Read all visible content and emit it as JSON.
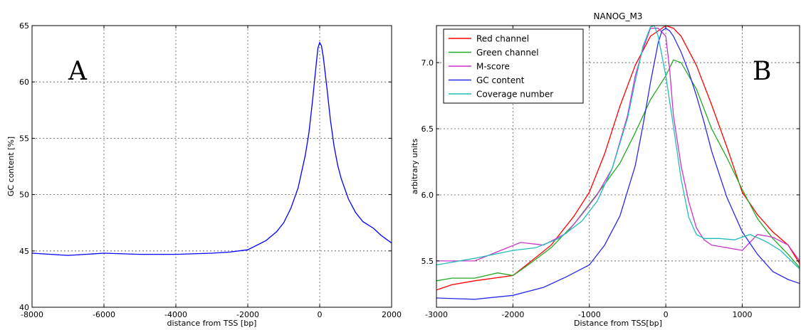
{
  "chart_data": [
    {
      "type": "line",
      "panel_letter": "A",
      "title": "",
      "xlabel": "distance from TSS [bp]",
      "ylabel": "GC content [%]",
      "xlim": [
        -8000,
        2000
      ],
      "ylim": [
        40,
        65
      ],
      "xticks": [
        -8000,
        -6000,
        -4000,
        -2000,
        0,
        2000
      ],
      "yticks": [
        40,
        45,
        50,
        55,
        60,
        65
      ],
      "grid": true,
      "series": [
        {
          "color": "#0000ff",
          "x": [
            -8000,
            -7000,
            -6000,
            -5000,
            -4000,
            -3000,
            -2500,
            -2000,
            -1500,
            -1200,
            -1000,
            -800,
            -600,
            -400,
            -300,
            -200,
            -100,
            -50,
            0,
            50,
            100,
            200,
            300,
            400,
            500,
            600,
            800,
            1000,
            1200,
            1500,
            1700,
            2000
          ],
          "y": [
            44.8,
            44.6,
            44.8,
            44.7,
            44.7,
            44.8,
            44.9,
            45.1,
            45.9,
            46.7,
            47.5,
            48.8,
            50.6,
            53.5,
            55.5,
            58.3,
            61.5,
            63.0,
            63.5,
            63.2,
            62.2,
            59.5,
            56.6,
            54.3,
            52.6,
            51.4,
            49.6,
            48.4,
            47.6,
            47.0,
            46.4,
            45.7
          ]
        }
      ]
    },
    {
      "type": "line",
      "panel_letter": "B",
      "title": "NANOG_M3",
      "xlabel": "Distance from TSS[bp]",
      "ylabel": "arbitrary units",
      "xlim": [
        -3000,
        1750
      ],
      "ylim": [
        5.15,
        7.28
      ],
      "xticks": [
        -3000,
        -2000,
        -1000,
        0,
        1000
      ],
      "yticks": [
        5.5,
        6.0,
        6.5,
        7.0
      ],
      "grid": true,
      "legend_position": "top-left",
      "series": [
        {
          "name": "Red channel",
          "color": "#ff0000",
          "x": [
            -3000,
            -2800,
            -2500,
            -2000,
            -1800,
            -1500,
            -1200,
            -1000,
            -800,
            -600,
            -400,
            -200,
            0,
            100,
            200,
            400,
            600,
            800,
            1000,
            1200,
            1400,
            1600,
            1750
          ],
          "y": [
            5.28,
            5.32,
            5.35,
            5.39,
            5.48,
            5.62,
            5.84,
            6.02,
            6.31,
            6.67,
            6.98,
            7.2,
            7.28,
            7.26,
            7.2,
            6.98,
            6.68,
            6.36,
            6.02,
            5.85,
            5.72,
            5.62,
            5.48
          ]
        },
        {
          "name": "Green channel",
          "color": "#22aa22",
          "x": [
            -3000,
            -2800,
            -2500,
            -2200,
            -2000,
            -1800,
            -1500,
            -1200,
            -1000,
            -800,
            -600,
            -400,
            -200,
            0,
            100,
            200,
            400,
            600,
            800,
            1000,
            1200,
            1400,
            1600,
            1750
          ],
          "y": [
            5.35,
            5.37,
            5.37,
            5.41,
            5.39,
            5.47,
            5.6,
            5.78,
            5.93,
            6.08,
            6.24,
            6.47,
            6.72,
            6.9,
            7.02,
            7.0,
            6.8,
            6.5,
            6.28,
            6.04,
            5.82,
            5.67,
            5.55,
            5.45
          ]
        },
        {
          "name": "M-score",
          "color": "#cc33cc",
          "x": [
            -3000,
            -2500,
            -2200,
            -1900,
            -1600,
            -1300,
            -1100,
            -900,
            -700,
            -500,
            -400,
            -300,
            -200,
            -100,
            0,
            50,
            100,
            200,
            300,
            400,
            500,
            600,
            800,
            1000,
            1200,
            1400,
            1600,
            1750
          ],
          "y": [
            5.5,
            5.5,
            5.57,
            5.64,
            5.62,
            5.71,
            5.85,
            6.0,
            6.2,
            6.6,
            6.9,
            7.1,
            7.26,
            7.26,
            7.2,
            6.95,
            6.6,
            6.22,
            5.95,
            5.75,
            5.66,
            5.62,
            5.6,
            5.58,
            5.7,
            5.68,
            5.62,
            5.5
          ]
        },
        {
          "name": "GC content",
          "color": "#2a2aee",
          "x": [
            -3000,
            -2500,
            -2000,
            -1600,
            -1300,
            -1000,
            -800,
            -600,
            -400,
            -300,
            -200,
            -100,
            -50,
            0,
            50,
            100,
            200,
            300,
            400,
            500,
            600,
            800,
            1000,
            1200,
            1400,
            1600,
            1750
          ],
          "y": [
            5.22,
            5.21,
            5.24,
            5.3,
            5.38,
            5.47,
            5.62,
            5.84,
            6.22,
            6.52,
            6.85,
            7.15,
            7.24,
            7.26,
            7.24,
            7.2,
            7.08,
            6.93,
            6.75,
            6.55,
            6.33,
            5.98,
            5.72,
            5.55,
            5.42,
            5.36,
            5.33
          ]
        },
        {
          "name": "Coverage number",
          "color": "#22bbbb",
          "x": [
            -3000,
            -2500,
            -2000,
            -1700,
            -1400,
            -1100,
            -900,
            -700,
            -500,
            -400,
            -300,
            -200,
            -150,
            -100,
            0,
            100,
            200,
            300,
            400,
            500,
            700,
            900,
            1100,
            1300,
            1500,
            1750
          ],
          "y": [
            5.47,
            5.52,
            5.58,
            5.6,
            5.67,
            5.8,
            5.95,
            6.2,
            6.58,
            6.86,
            7.12,
            7.27,
            7.28,
            7.2,
            6.9,
            6.52,
            6.12,
            5.83,
            5.7,
            5.67,
            5.67,
            5.66,
            5.7,
            5.65,
            5.58,
            5.44
          ]
        }
      ]
    }
  ]
}
